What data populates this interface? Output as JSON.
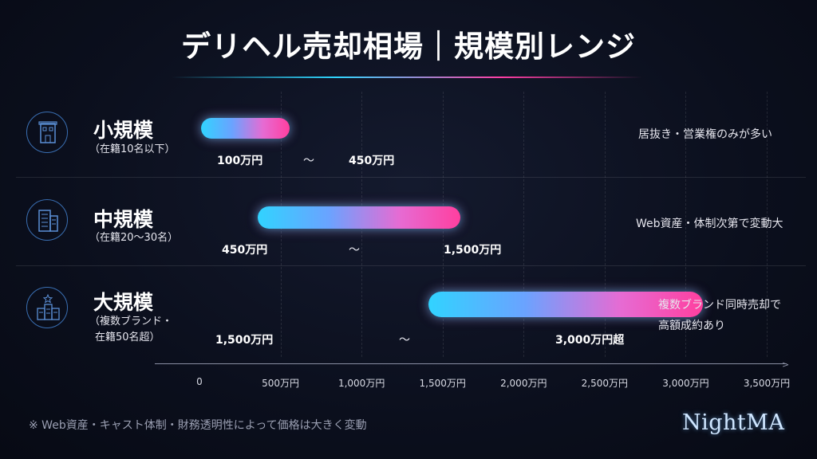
{
  "header": {
    "title": "デリヘル売却相場｜規模別レンジ"
  },
  "chart_data": {
    "type": "bar",
    "orientation": "horizontal-range",
    "x_tick_labels": [
      "0",
      "500万円",
      "1,000万円",
      "1,500万円",
      "2,000万円",
      "2,500万円",
      "3,000万円",
      "3,500万円"
    ],
    "x_ticks": [
      0,
      500,
      1000,
      1500,
      2000,
      2500,
      3000,
      3500
    ],
    "xlim": [
      0,
      3500
    ],
    "unit": "万円",
    "grid": true,
    "categories": [
      "小規模",
      "中規模",
      "大規模"
    ],
    "rows": [
      {
        "name": "小規模",
        "sub": [
          "（在籍10名以下）"
        ],
        "min": 100,
        "max": 450,
        "min_label": "100万円",
        "max_label": "450万円",
        "separator": "～",
        "note": [
          "居抜き・営業権のみが多い"
        ]
      },
      {
        "name": "中規模",
        "sub": [
          "（在籍20～30名）"
        ],
        "min": 450,
        "max": 1500,
        "min_label": "450万円",
        "max_label": "1,500万円",
        "separator": "～",
        "note": [
          "Web資産・体制次第で変動大"
        ]
      },
      {
        "name": "大規模",
        "sub": [
          "（複数ブランド・",
          "在籍50名超）"
        ],
        "min": 1500,
        "max": 3000,
        "min_label": "1,500万円",
        "max_label": "3,000万円超",
        "separator": "～",
        "note": [
          "複数ブランド同時売却で",
          "高額成約あり"
        ]
      }
    ]
  },
  "footer": {
    "note": "※ Web資産・キャスト体制・財務透明性によって価格は大きく変動",
    "logo": "NightMA"
  },
  "colors": {
    "bar_start": "#31d3ff",
    "bar_end": "#ff3f9f",
    "background": "#0b0f1d"
  },
  "icons": [
    "small-shop-building-icon",
    "mid-office-building-icon",
    "large-buildings-icon"
  ]
}
